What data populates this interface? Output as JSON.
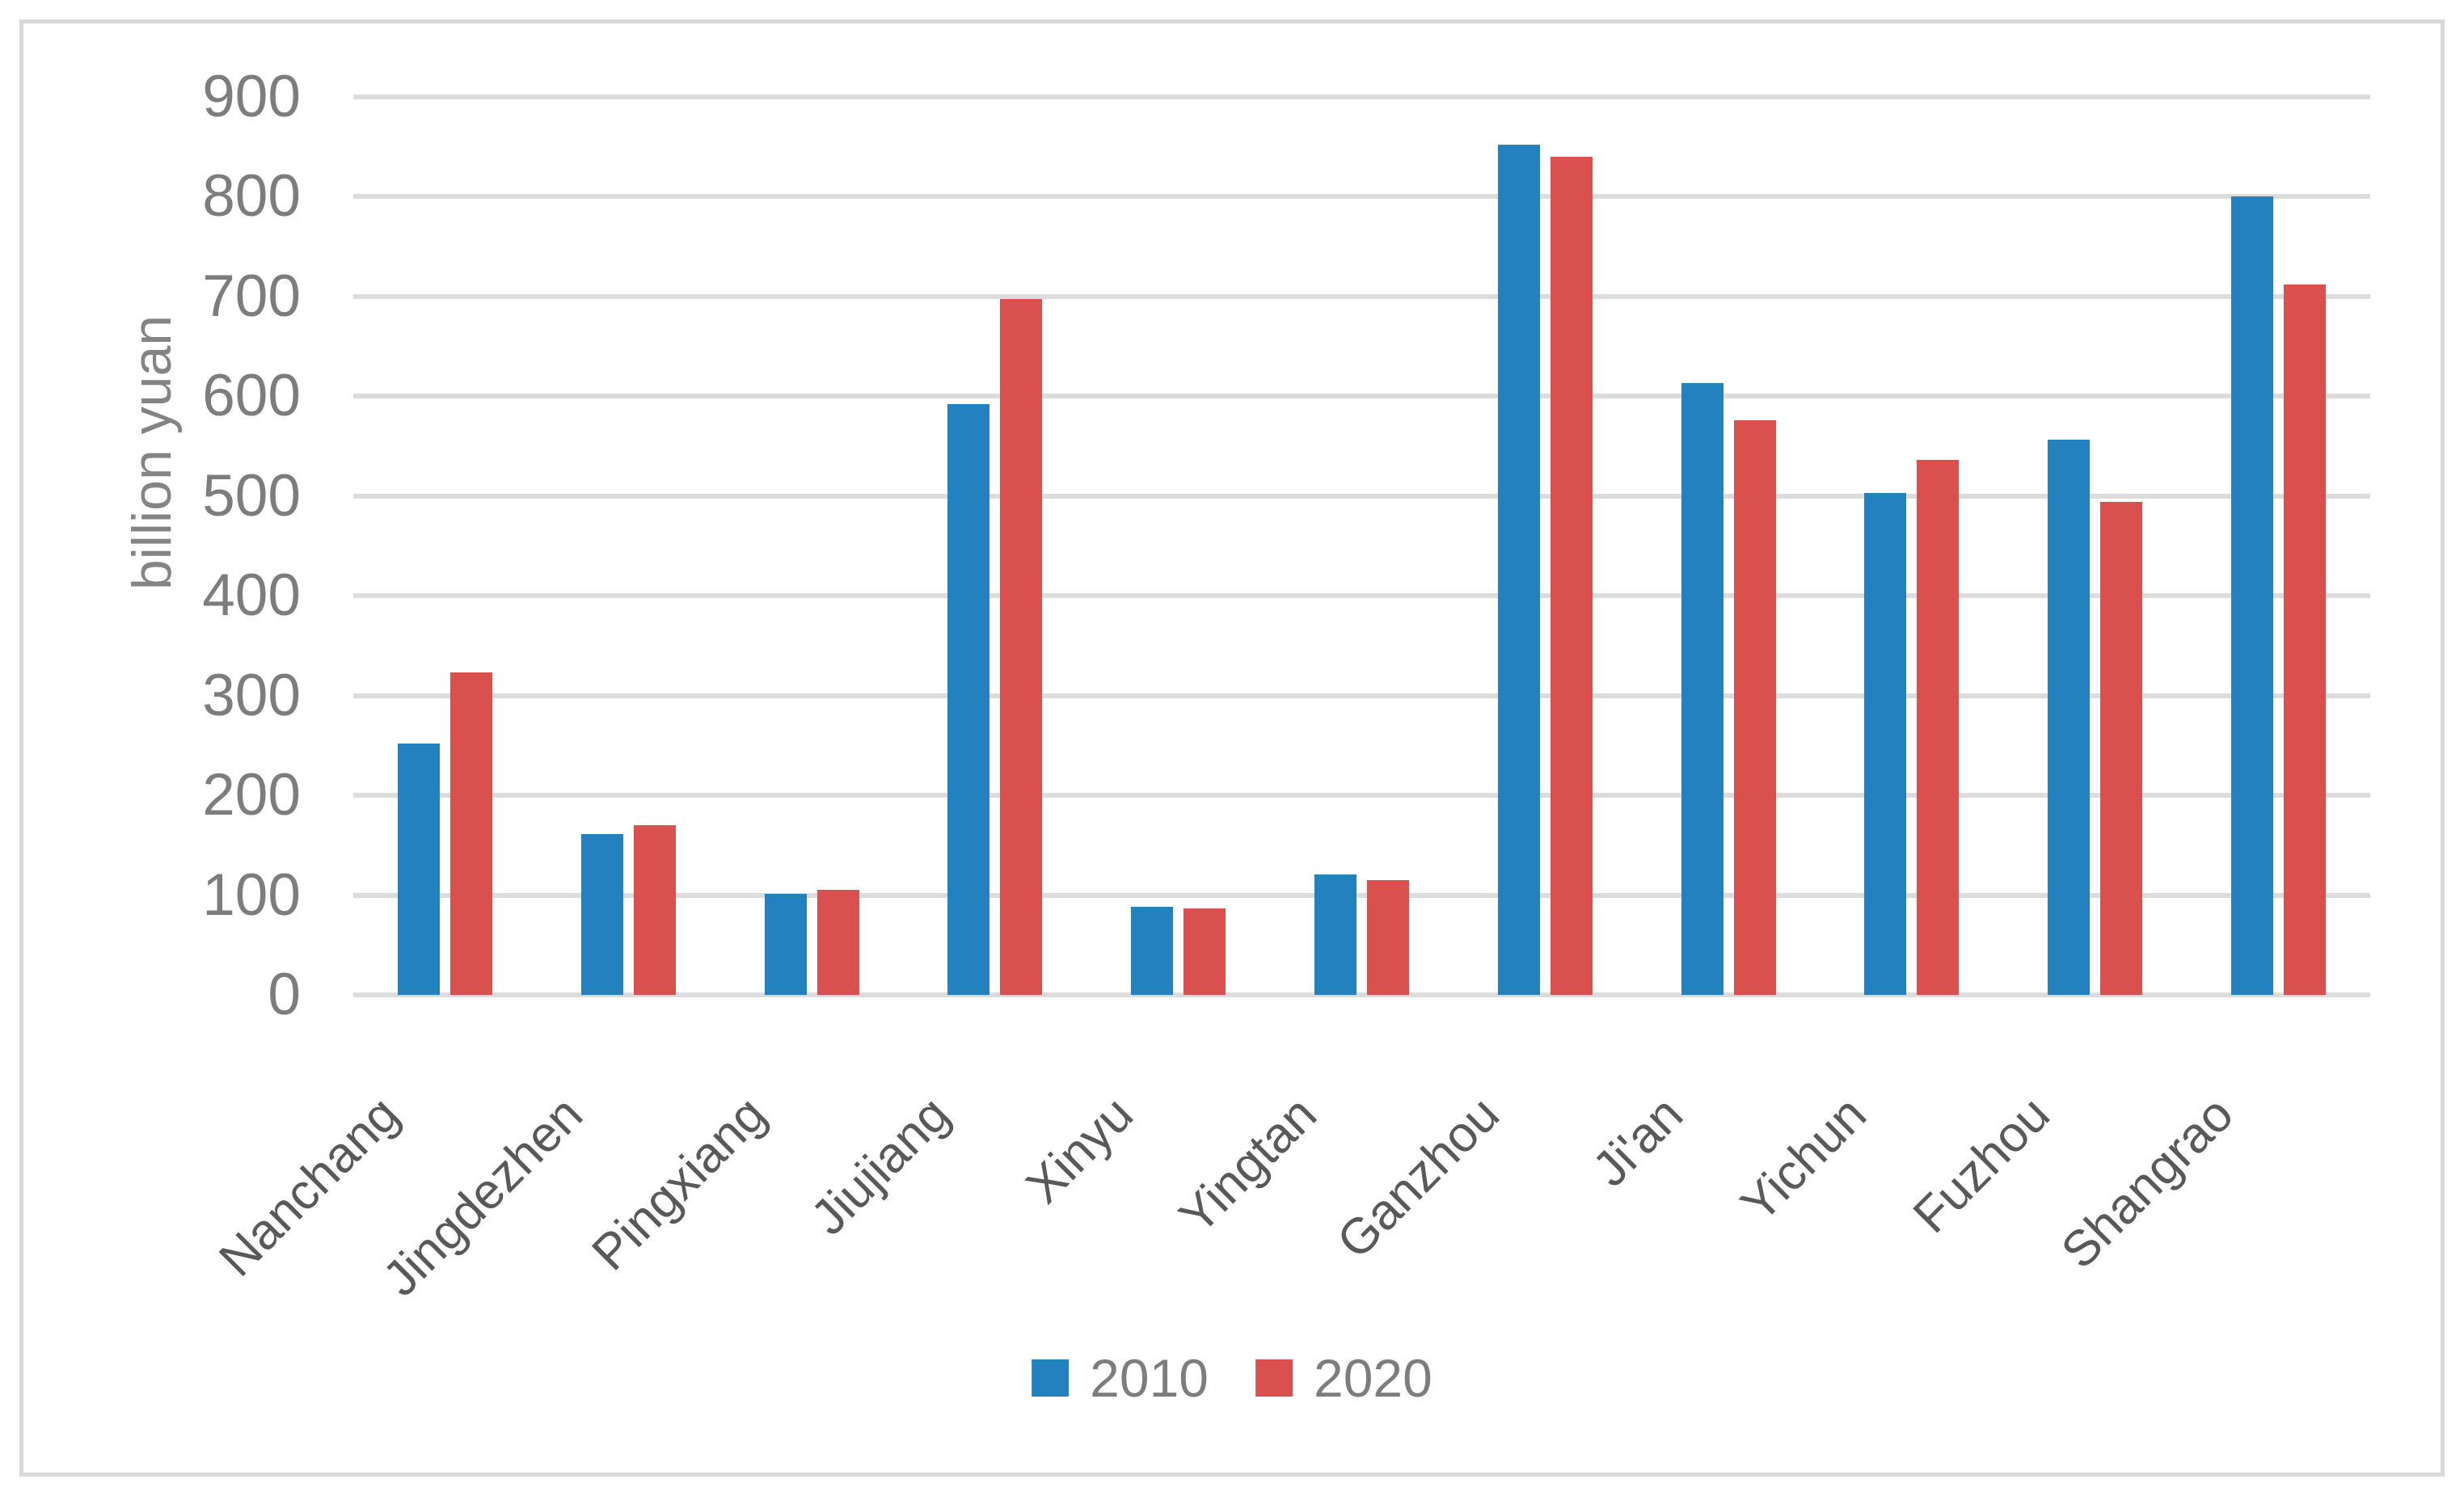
{
  "figure": {
    "background_color": "#ffffff",
    "border_color": "#d9d9d9",
    "gridline_color": "#dcdcdc",
    "tick_label_color": "#7d7d7d",
    "category_label_color": "#595959",
    "axis_title_color": "#848484"
  },
  "chart_data": {
    "type": "bar",
    "title": "",
    "xlabel": "",
    "ylabel": "billion yuan",
    "ylim": [
      0,
      900
    ],
    "ytick_interval": 100,
    "ytick_labels": [
      "0",
      "100",
      "200",
      "300",
      "400",
      "500",
      "600",
      "700",
      "800",
      "900"
    ],
    "grid": "horizontal",
    "legend_position": "bottom",
    "categories": [
      "Nanchang",
      "Jingdezhen",
      "Pingxiang",
      "Jiujiang",
      "Xinyu",
      "Yingtan",
      "Ganzhou",
      "Ji'an",
      "Yichun",
      "Fuzhou",
      "Shangrao"
    ],
    "series": [
      {
        "name": "2010",
        "color": "#2481c0",
        "values": [
          252,
          161,
          101,
          592,
          88,
          121,
          852,
          613,
          503,
          556,
          800
        ]
      },
      {
        "name": "2020",
        "color": "#da504e",
        "values": [
          323,
          170,
          105,
          697,
          87,
          115,
          840,
          576,
          536,
          494,
          712
        ]
      }
    ]
  }
}
